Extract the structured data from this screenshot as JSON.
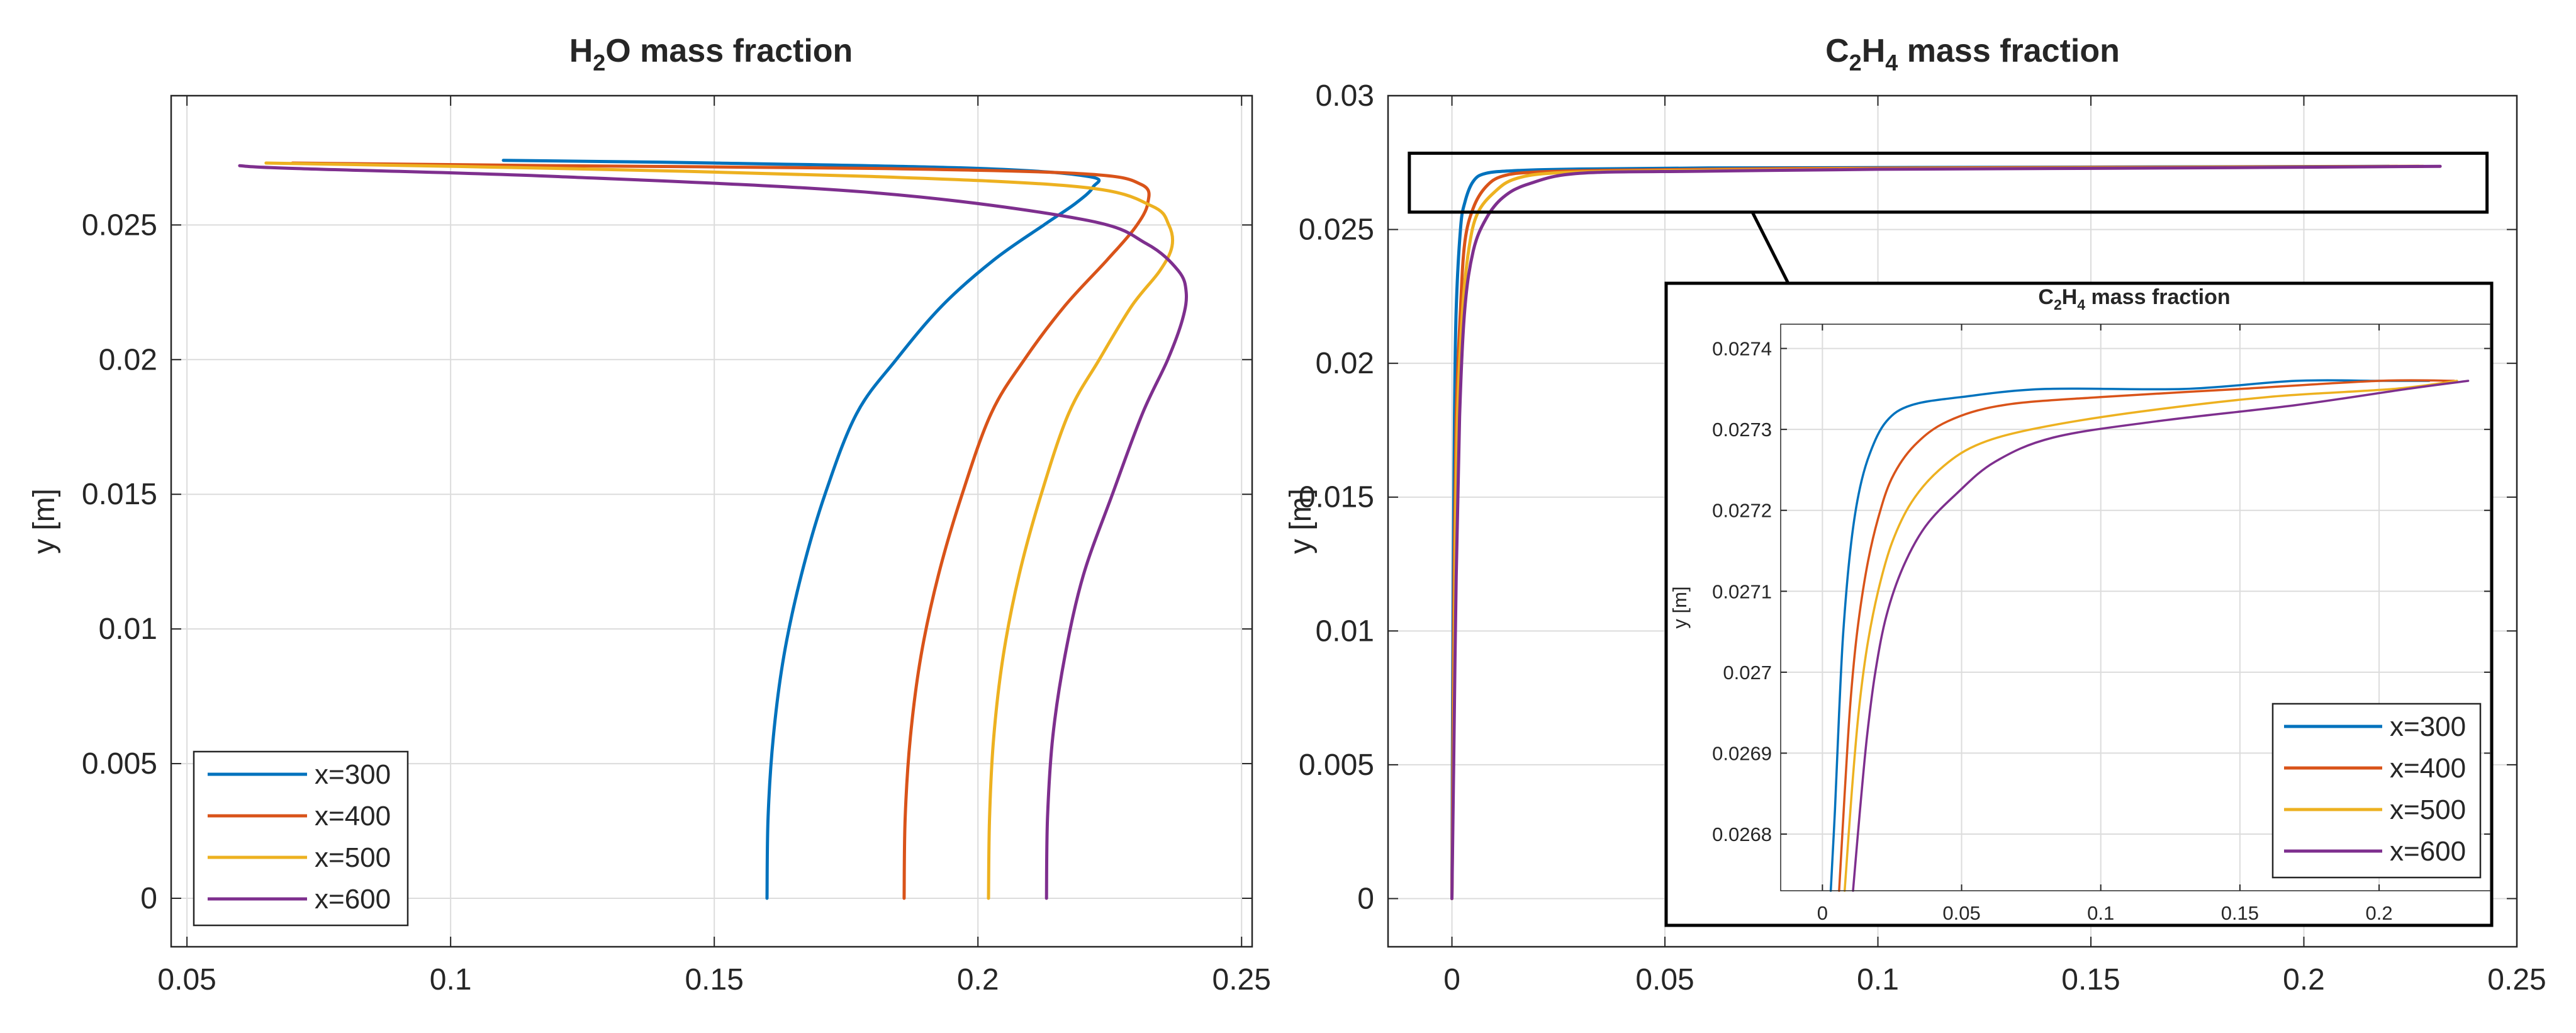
{
  "colors": {
    "x300": "#0072BD",
    "x400": "#D95319",
    "x500": "#EDB120",
    "x600": "#7E2F8E",
    "axis": "#262626",
    "grid": "#dcdcdc"
  },
  "chart_data": [
    {
      "id": "h2o",
      "type": "line",
      "title": {
        "pre": "H",
        "sub": "2",
        "post": "O mass fraction"
      },
      "xlabel": "",
      "ylabel": "y [m]",
      "xlim": [
        0.047,
        0.252
      ],
      "ylim": [
        -0.0018,
        0.0298
      ],
      "xticks": [
        "0.05",
        "0.1",
        "0.15",
        "0.2",
        "0.25"
      ],
      "yticks": [
        "0",
        "0.005",
        "0.01",
        "0.015",
        "0.02",
        "0.025"
      ],
      "grid": true,
      "legend": {
        "position": "bottom-left",
        "entries": [
          "x=300",
          "x=400",
          "x=500",
          "x=600"
        ]
      },
      "series": [
        {
          "name": "x=300",
          "color": "#0072BD",
          "x": [
            0.16,
            0.1602,
            0.1612,
            0.1632,
            0.1665,
            0.171,
            0.177,
            0.1845,
            0.1932,
            0.203,
            0.2125,
            0.2185,
            0.2218,
            0.221,
            0.2,
            0.15,
            0.11
          ],
          "y": [
            0,
            0.003,
            0.006,
            0.009,
            0.012,
            0.015,
            0.018,
            0.02,
            0.022,
            0.0237,
            0.025,
            0.0258,
            0.0264,
            0.0268,
            0.0271,
            0.0273,
            0.0274
          ]
        },
        {
          "name": "x=400",
          "color": "#D95319",
          "x": [
            0.186,
            0.1862,
            0.1872,
            0.1892,
            0.1925,
            0.197,
            0.2025,
            0.2088,
            0.2165,
            0.2245,
            0.2298,
            0.2322,
            0.231,
            0.22,
            0.18,
            0.12,
            0.07
          ],
          "y": [
            0,
            0.003,
            0.006,
            0.009,
            0.012,
            0.015,
            0.018,
            0.02,
            0.022,
            0.0237,
            0.0249,
            0.0258,
            0.0265,
            0.0269,
            0.0271,
            0.0272,
            0.0273
          ]
        },
        {
          "name": "x=500",
          "color": "#EDB120",
          "x": [
            0.202,
            0.2022,
            0.203,
            0.2048,
            0.2078,
            0.212,
            0.2172,
            0.223,
            0.2292,
            0.2345,
            0.2368,
            0.2362,
            0.233,
            0.22,
            0.18,
            0.12,
            0.065
          ],
          "y": [
            0,
            0.003,
            0.006,
            0.009,
            0.012,
            0.015,
            0.018,
            0.02,
            0.022,
            0.0233,
            0.0242,
            0.025,
            0.0257,
            0.0264,
            0.0268,
            0.0271,
            0.0273
          ]
        },
        {
          "name": "x=600",
          "color": "#7E2F8E",
          "x": [
            0.213,
            0.2132,
            0.2142,
            0.2165,
            0.22,
            0.2255,
            0.2312,
            0.236,
            0.2388,
            0.2395,
            0.238,
            0.232,
            0.22,
            0.18,
            0.12,
            0.07,
            0.06
          ],
          "y": [
            0,
            0.003,
            0.006,
            0.009,
            0.012,
            0.015,
            0.018,
            0.02,
            0.0215,
            0.0225,
            0.0233,
            0.0243,
            0.0252,
            0.0262,
            0.0268,
            0.0271,
            0.0272
          ]
        }
      ]
    },
    {
      "id": "c2h4",
      "type": "line",
      "title": {
        "pre": "C",
        "sub1": "2",
        "mid": "H",
        "sub2": "4",
        "post": " mass fraction"
      },
      "xlabel": "",
      "ylabel": "y [m]",
      "xlim": [
        -0.015,
        0.25
      ],
      "ylim": [
        -0.0018,
        0.03
      ],
      "xticks": [
        "0",
        "0.05",
        "0.1",
        "0.15",
        "0.2",
        "0.25"
      ],
      "yticks": [
        "0",
        "0.005",
        "0.01",
        "0.015",
        "0.02",
        "0.025",
        "0.03"
      ],
      "grid": true,
      "zoom_box": {
        "x": [
          -0.01,
          0.243
        ],
        "y": [
          0.02565,
          0.02785
        ]
      },
      "series": [
        {
          "name": "x=300",
          "color": "#0072BD",
          "x": [
            0,
            0.0001,
            0.0003,
            0.0006,
            0.001,
            0.002,
            0.003,
            0.005,
            0.008,
            0.015,
            0.03,
            0.06,
            0.12,
            0.22
          ],
          "y": [
            0,
            0.005,
            0.012,
            0.018,
            0.022,
            0.025,
            0.026,
            0.0268,
            0.0271,
            0.0272,
            0.02726,
            0.0273,
            0.02732,
            0.02736
          ]
        },
        {
          "name": "x=400",
          "color": "#D95319",
          "x": [
            0,
            0.0002,
            0.0005,
            0.001,
            0.002,
            0.003,
            0.005,
            0.008,
            0.012,
            0.02,
            0.04,
            0.08,
            0.15,
            0.227
          ],
          "y": [
            0,
            0.005,
            0.012,
            0.018,
            0.022,
            0.0245,
            0.0258,
            0.0266,
            0.027,
            0.02715,
            0.02722,
            0.02728,
            0.02732,
            0.02736
          ]
        },
        {
          "name": "x=500",
          "color": "#EDB120",
          "x": [
            0,
            0.0003,
            0.0007,
            0.0013,
            0.0025,
            0.004,
            0.006,
            0.01,
            0.015,
            0.025,
            0.05,
            0.09,
            0.16,
            0.228
          ],
          "y": [
            0,
            0.005,
            0.012,
            0.018,
            0.022,
            0.0243,
            0.0256,
            0.0264,
            0.0269,
            0.02712,
            0.0272,
            0.02726,
            0.02731,
            0.02736
          ]
        },
        {
          "name": "x=600",
          "color": "#7E2F8E",
          "x": [
            0,
            0.0004,
            0.001,
            0.0018,
            0.003,
            0.005,
            0.008,
            0.012,
            0.018,
            0.03,
            0.06,
            0.1,
            0.17,
            0.232
          ],
          "y": [
            0,
            0.005,
            0.012,
            0.018,
            0.022,
            0.0242,
            0.0254,
            0.0262,
            0.0267,
            0.0271,
            0.02718,
            0.02725,
            0.0273,
            0.02736
          ]
        }
      ]
    },
    {
      "id": "c2h4-inset",
      "type": "line",
      "title": {
        "pre": "C",
        "sub1": "2",
        "mid": "H",
        "sub2": "4",
        "post": " mass fraction"
      },
      "xlabel": "",
      "ylabel": "y [m]",
      "xlim": [
        -0.015,
        0.24
      ],
      "ylim": [
        0.02673,
        0.02743
      ],
      "xticks": [
        "0",
        "0.05",
        "0.1",
        "0.15",
        "0.2"
      ],
      "yticks": [
        "0.0268",
        "0.0269",
        "0.027",
        "0.0271",
        "0.0272",
        "0.0273",
        "0.0274"
      ],
      "grid": true,
      "legend": {
        "position": "bottom-right",
        "entries": [
          "x=300",
          "x=400",
          "x=500",
          "x=600"
        ]
      },
      "series": [
        {
          "name": "x=300",
          "color": "#0072BD",
          "x": [
            0.003,
            0.0045,
            0.006,
            0.0075,
            0.01,
            0.013,
            0.017,
            0.023,
            0.032,
            0.05,
            0.08,
            0.13,
            0.17,
            0.2,
            0.218
          ],
          "y": [
            0.02673,
            0.02683,
            0.02695,
            0.02705,
            0.02715,
            0.02722,
            0.02727,
            0.02731,
            0.02733,
            0.02734,
            0.02735,
            0.02735,
            0.02736,
            0.02736,
            0.02736
          ]
        },
        {
          "name": "x=400",
          "color": "#D95319",
          "x": [
            0.006,
            0.008,
            0.01,
            0.0125,
            0.016,
            0.02,
            0.025,
            0.033,
            0.045,
            0.065,
            0.1,
            0.15,
            0.2,
            0.227
          ],
          "y": [
            0.02673,
            0.02685,
            0.02696,
            0.02705,
            0.02713,
            0.02719,
            0.02724,
            0.02728,
            0.02731,
            0.02733,
            0.02734,
            0.02735,
            0.02736,
            0.02736
          ]
        },
        {
          "name": "x=500",
          "color": "#EDB120",
          "x": [
            0.008,
            0.0105,
            0.013,
            0.016,
            0.02,
            0.025,
            0.032,
            0.042,
            0.055,
            0.075,
            0.11,
            0.16,
            0.205,
            0.228
          ],
          "y": [
            0.02673,
            0.02685,
            0.02695,
            0.02703,
            0.0271,
            0.02716,
            0.02721,
            0.02725,
            0.02728,
            0.0273,
            0.02732,
            0.02734,
            0.02735,
            0.02736
          ]
        },
        {
          "name": "x=600",
          "color": "#7E2F8E",
          "x": [
            0.011,
            0.0135,
            0.016,
            0.019,
            0.023,
            0.029,
            0.037,
            0.048,
            0.062,
            0.083,
            0.12,
            0.17,
            0.21,
            0.232
          ],
          "y": [
            0.02673,
            0.02683,
            0.02692,
            0.027,
            0.02707,
            0.02713,
            0.02718,
            0.02722,
            0.02726,
            0.02729,
            0.02731,
            0.02733,
            0.02735,
            0.02736
          ]
        }
      ]
    }
  ]
}
